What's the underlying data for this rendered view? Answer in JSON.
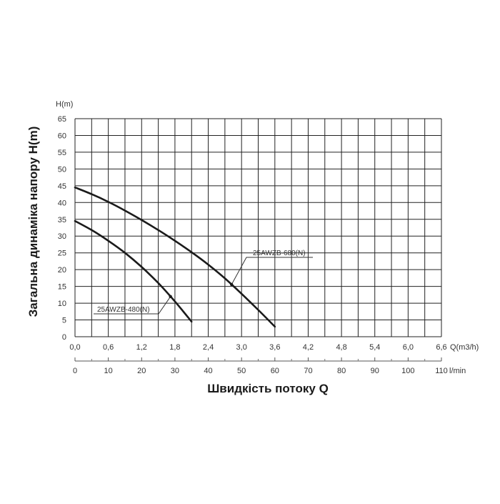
{
  "chart_data": {
    "type": "line",
    "y_axis": {
      "label": "H(m)",
      "min": 0,
      "max": 65,
      "ticks": [
        "0",
        "5",
        "10",
        "15",
        "20",
        "25",
        "30",
        "35",
        "40",
        "45",
        "50",
        "55",
        "60",
        "65"
      ]
    },
    "x_axis_flow": {
      "label": "Q(m3/h)",
      "min": 0,
      "max": 6.6,
      "ticks": [
        "0,0",
        "0,6",
        "1,2",
        "1,8",
        "2,4",
        "3,0",
        "3,6",
        "4,2",
        "4,8",
        "5,4",
        "6,0",
        "6,6"
      ]
    },
    "x_axis_lmin": {
      "label": "l/min",
      "min": 0,
      "max": 110,
      "ticks": [
        "0",
        "10",
        "20",
        "30",
        "40",
        "50",
        "60",
        "70",
        "80",
        "90",
        "100",
        "110"
      ]
    },
    "ytitle": "Загальна динаміка напору H(m)",
    "xtitle": "Швидкість потоку Q",
    "grid": true,
    "series": [
      {
        "name": "25AWZB-680(N)",
        "x": [
          0.0,
          0.3,
          0.6,
          0.9,
          1.2,
          1.5,
          1.8,
          2.1,
          2.4,
          2.7,
          3.0,
          3.3,
          3.6
        ],
        "y": [
          44.5,
          42.5,
          40.2,
          37.6,
          34.8,
          31.8,
          28.6,
          25.2,
          21.5,
          17.4,
          12.8,
          8.0,
          3.0
        ]
      },
      {
        "name": "25AWZB-480(N)",
        "x": [
          0.0,
          0.3,
          0.6,
          0.9,
          1.2,
          1.5,
          1.8,
          2.1
        ],
        "y": [
          34.5,
          31.8,
          28.6,
          25.0,
          20.8,
          16.0,
          10.5,
          4.5
        ]
      }
    ]
  }
}
